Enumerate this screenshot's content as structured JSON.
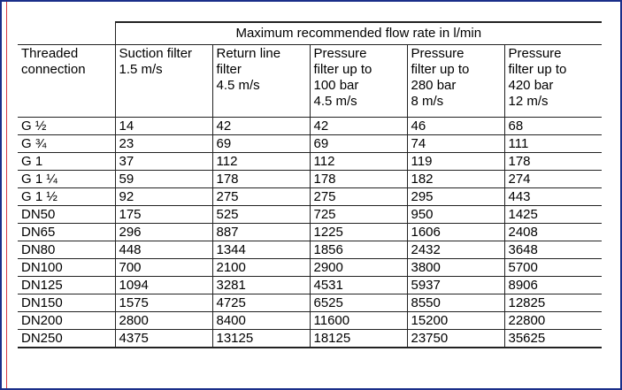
{
  "table": {
    "group_header": "Maximum recommended flow rate in l/min",
    "columns": [
      "Threaded\nconnection",
      "Suction filter\n1.5 m/s",
      "Return line\nfilter\n4.5 m/s",
      "Pressure\nfilter up to\n100 bar\n4.5 m/s",
      "Pressure\nfilter up to\n280 bar\n8 m/s",
      "Pressure\nfilter up to\n420 bar\n12 m/s"
    ],
    "rows": [
      [
        "G ½",
        "14",
        "42",
        "42",
        "46",
        "68"
      ],
      [
        "G ¾",
        "23",
        "69",
        "69",
        "74",
        "111"
      ],
      [
        "G 1",
        "37",
        "112",
        "112",
        "119",
        "178"
      ],
      [
        "G 1 ¼",
        "59",
        "178",
        "178",
        "182",
        "274"
      ],
      [
        "G 1 ½",
        "92",
        "275",
        "275",
        "295",
        "443"
      ],
      [
        "DN50",
        "175",
        "525",
        "725",
        "950",
        "1425"
      ],
      [
        "DN65",
        "296",
        "887",
        "1225",
        "1606",
        "2408"
      ],
      [
        "DN80",
        "448",
        "1344",
        "1856",
        "2432",
        "3648"
      ],
      [
        "DN100",
        "700",
        "2100",
        "2900",
        "3800",
        "5700"
      ],
      [
        "DN125",
        "1094",
        "3281",
        "4531",
        "5937",
        "8906"
      ],
      [
        "DN150",
        "1575",
        "4725",
        "6525",
        "8550",
        "12825"
      ],
      [
        "DN200",
        "2800",
        "8400",
        "11600",
        "15200",
        "22800"
      ],
      [
        "DN250",
        "4375",
        "13125",
        "18125",
        "23750",
        "35625"
      ]
    ]
  }
}
